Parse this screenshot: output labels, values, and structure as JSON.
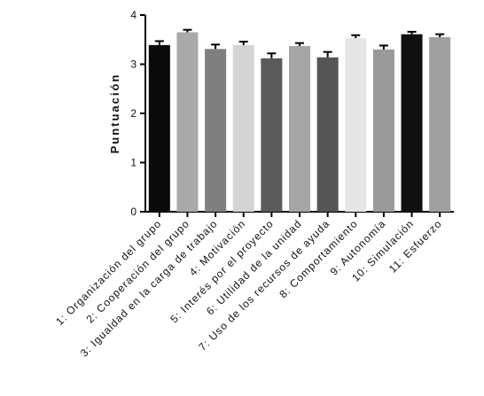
{
  "chart_data": {
    "type": "bar",
    "title": "",
    "xlabel": "",
    "ylabel": "Puntuación",
    "ylim": [
      0,
      4
    ],
    "yticks": [
      "0",
      "1",
      "2",
      "3",
      "4"
    ],
    "grid": false,
    "legend": "none",
    "categories": [
      "1: Organización del grupo",
      "2: Cooperación del grupo",
      "3: Igualdad en la carga de trabajo",
      "4: Motivación",
      "5: Interés por el proyecto",
      "6: Utilidad de la unidad",
      "7: Uso de los recursos de ayuda",
      "8: Comportamiento",
      "9: Autonomía",
      "10: Simulación",
      "11: Esfuerzo"
    ],
    "values": [
      3.39,
      3.65,
      3.31,
      3.39,
      3.12,
      3.37,
      3.14,
      3.53,
      3.3,
      3.61,
      3.55
    ],
    "errors": [
      0.08,
      0.05,
      0.09,
      0.07,
      0.1,
      0.06,
      0.11,
      0.06,
      0.08,
      0.05,
      0.06
    ],
    "colors": [
      "#0a0a0a",
      "#a9a9a9",
      "#7f7f7f",
      "#d4d4d4",
      "#5a5a5a",
      "#a6a6a6",
      "#555555",
      "#e6e6e6",
      "#9a9a9a",
      "#101010",
      "#a0a0a0"
    ]
  }
}
